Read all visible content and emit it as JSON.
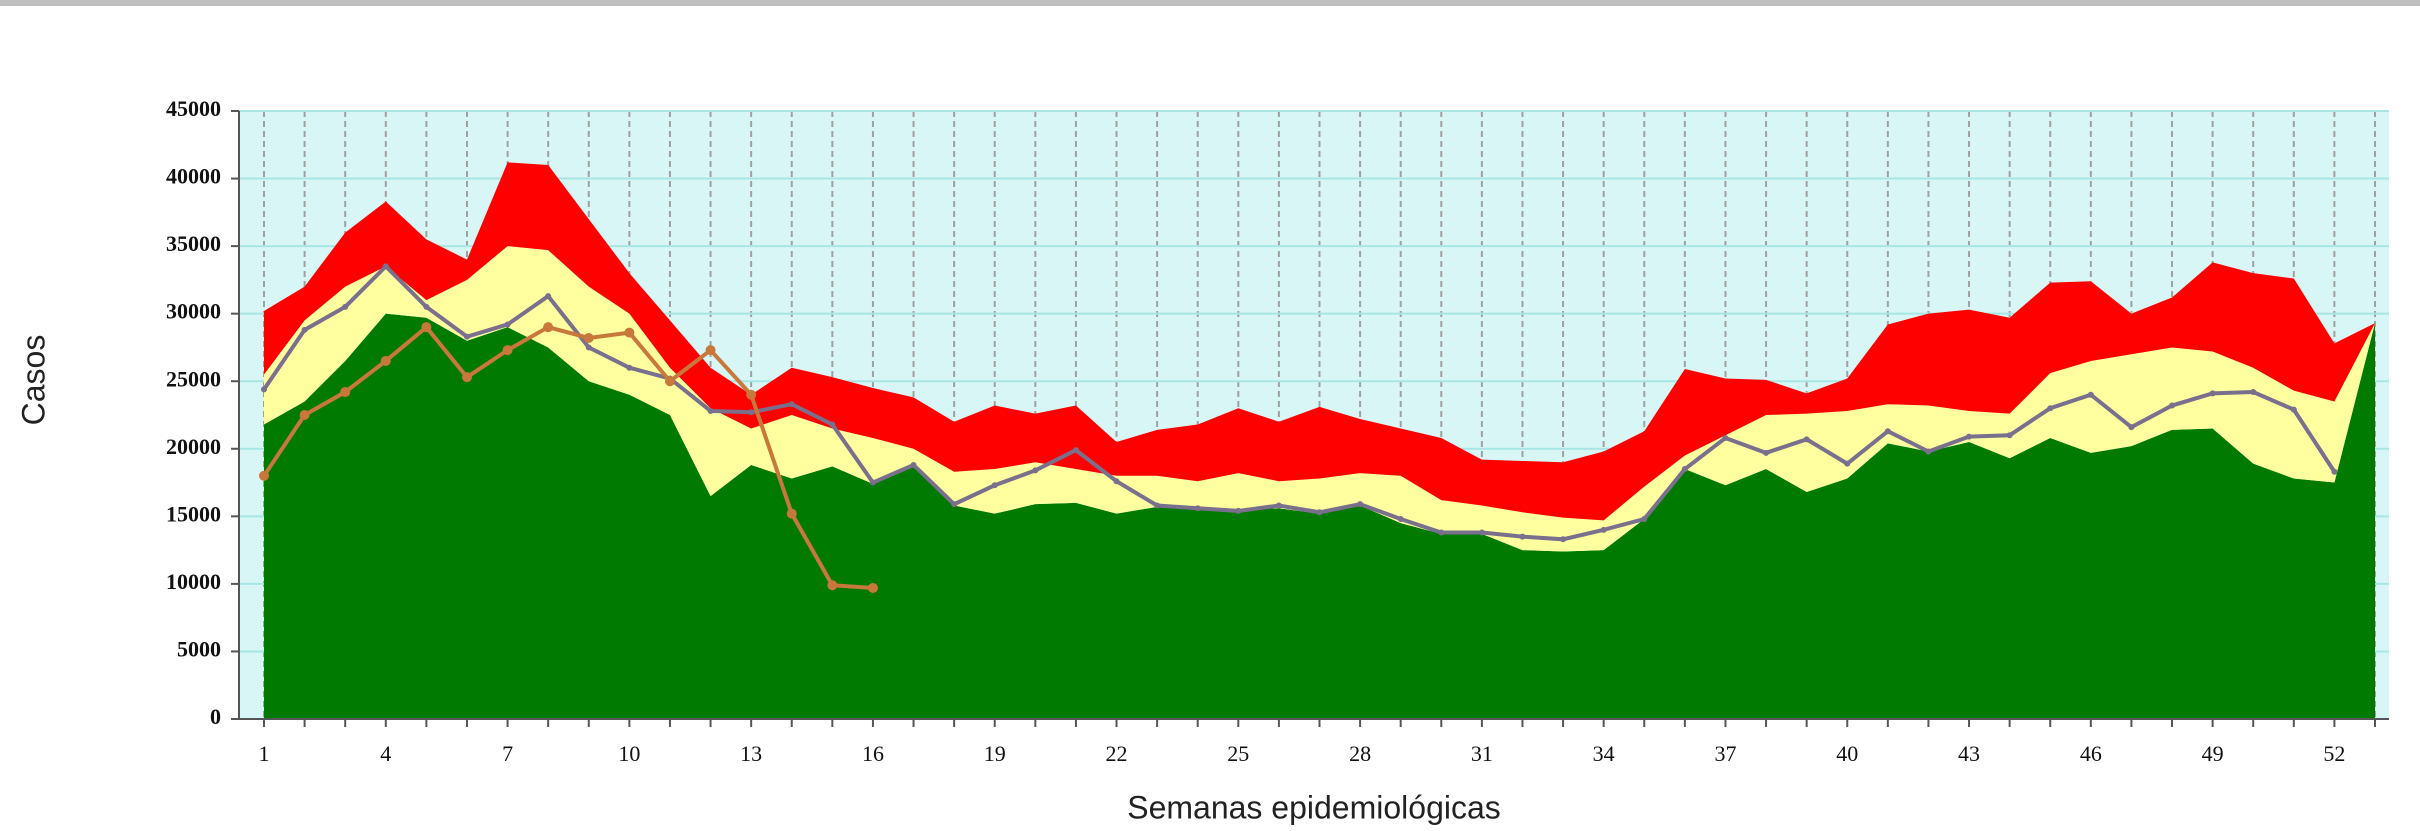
{
  "chart_data": {
    "type": "area",
    "y_label": "Casos",
    "x_label": "Semanas epidemiológicas",
    "categories": [
      "1",
      null,
      null,
      "4",
      null,
      null,
      "7",
      null,
      null,
      "10",
      null,
      null,
      "13",
      null,
      null,
      "16",
      null,
      null,
      "19",
      null,
      null,
      "22",
      null,
      null,
      "25",
      null,
      null,
      "28",
      null,
      null,
      "31",
      null,
      null,
      "34",
      null,
      null,
      "37",
      null,
      null,
      "40",
      null,
      null,
      "43",
      null,
      null,
      "46",
      null,
      null,
      "49",
      null,
      null,
      "52",
      null
    ],
    "ylim": [
      0,
      45000
    ],
    "yticks": [
      0,
      5000,
      10000,
      15000,
      20000,
      25000,
      30000,
      35000,
      40000,
      45000
    ],
    "grid": true,
    "series": [
      {
        "type": "area",
        "color": "#007a00",
        "values": [
          21800,
          23500,
          26500,
          30000,
          29700,
          28000,
          29000,
          27500,
          25000,
          24000,
          22500,
          16500,
          18800,
          17800,
          18700,
          17400,
          18800,
          15800,
          15200,
          15900,
          16000,
          15200,
          15700,
          15500,
          15500,
          15600,
          15200,
          15800,
          14500,
          13700,
          13700,
          12500,
          12400,
          12500,
          14800,
          18500,
          17300,
          18500,
          16800,
          17800,
          20400,
          19800,
          20500,
          19300,
          20800,
          19700,
          20200,
          21400,
          21500,
          18900,
          17800,
          17500,
          29300
        ]
      },
      {
        "type": "area",
        "color": "#ffffa0",
        "values": [
          3700,
          6000,
          5500,
          3500,
          1300,
          4500,
          6000,
          7200,
          7000,
          6000,
          3500,
          6500,
          2700,
          4700,
          2800,
          3400,
          1200,
          2500,
          3300,
          3100,
          2500,
          2800,
          2300,
          2100,
          2700,
          2000,
          2600,
          2400,
          3500,
          2500,
          2100,
          2800,
          2500,
          2200,
          2400,
          1000,
          3700,
          4000,
          5800,
          5000,
          2900,
          3400,
          2300,
          3300,
          4800,
          6800,
          6800,
          6100,
          5700,
          7100,
          6500,
          6000,
          0
        ]
      },
      {
        "type": "area",
        "color": "#ff0000",
        "values": [
          4700,
          2500,
          4000,
          4800,
          4500,
          1500,
          6200,
          6300,
          5000,
          3000,
          3500,
          3000,
          2500,
          3500,
          3800,
          3700,
          3800,
          3700,
          4700,
          3600,
          4700,
          2500,
          3400,
          4200,
          4800,
          4400,
          5300,
          4000,
          3500,
          4600,
          3400,
          3800,
          4100,
          5100,
          4100,
          6400,
          4200,
          2600,
          1500,
          2400,
          5900,
          6800,
          7500,
          7100,
          6700,
          5900,
          3000,
          3700,
          6600,
          7000,
          8300,
          4300,
          0
        ]
      },
      {
        "type": "line",
        "color": "#7a6f8c",
        "values": [
          24400,
          28800,
          30500,
          33500,
          30500,
          28300,
          29200,
          31300,
          27500,
          26000,
          25200,
          22800,
          22700,
          23300,
          21800,
          17500,
          18800,
          15900,
          17300,
          18400,
          19900,
          17600,
          15800,
          15600,
          15400,
          15800,
          15300,
          15900,
          14800,
          13800,
          13800,
          13500,
          13300,
          14000,
          14800,
          18500,
          20800,
          19700,
          20700,
          18900,
          21300,
          19800,
          20900,
          21000,
          23000,
          24000,
          21600,
          23200,
          24100,
          24200,
          22900,
          18300,
          null
        ]
      },
      {
        "type": "line",
        "color": "#c8783a",
        "values": [
          18000,
          22500,
          24200,
          26500,
          29000,
          25300,
          27300,
          29000,
          28200,
          28600,
          25000,
          27300,
          24000,
          15200,
          9900,
          9700,
          null,
          null,
          null,
          null,
          null,
          null,
          null,
          null,
          null,
          null,
          null,
          null,
          null,
          null,
          null,
          null,
          null,
          null,
          null,
          null,
          null,
          null,
          null,
          null,
          null,
          null,
          null,
          null,
          null,
          null,
          null,
          null,
          null,
          null,
          null,
          null,
          null
        ]
      }
    ]
  }
}
